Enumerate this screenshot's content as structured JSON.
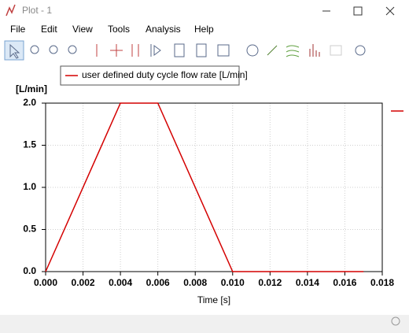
{
  "window": {
    "title": "Plot - 1"
  },
  "menu": [
    "File",
    "Edit",
    "View",
    "Tools",
    "Analysis",
    "Help"
  ],
  "chart_data": {
    "type": "line",
    "y_unit": "[L/min]",
    "x_label": "Time [s]",
    "x": [
      0,
      0.004,
      0.006,
      0.01,
      0.017
    ],
    "series": [
      {
        "name": "user defined duty cycle flow rate [L/min]",
        "color": "#d40000",
        "values": [
          0,
          2,
          2,
          0,
          0
        ]
      }
    ],
    "xlim": [
      0,
      0.018
    ],
    "xticks": [
      {
        "value": 0,
        "label": "0.000"
      },
      {
        "value": 0.002,
        "label": "0.002"
      },
      {
        "value": 0.004,
        "label": "0.004"
      },
      {
        "value": 0.006,
        "label": "0.006"
      },
      {
        "value": 0.008,
        "label": "0.008"
      },
      {
        "value": 0.01,
        "label": "0.010"
      },
      {
        "value": 0.012,
        "label": "0.012"
      },
      {
        "value": 0.014,
        "label": "0.014"
      },
      {
        "value": 0.016,
        "label": "0.016"
      },
      {
        "value": 0.018,
        "label": "0.018"
      }
    ],
    "ylim": [
      0,
      2
    ],
    "yticks": [
      {
        "value": 0,
        "label": "0.0"
      },
      {
        "value": 0.5,
        "label": "0.5"
      },
      {
        "value": 1,
        "label": "1.0"
      },
      {
        "value": 1.5,
        "label": "1.5"
      },
      {
        "value": 2,
        "label": "2.0"
      }
    ],
    "grid": true
  }
}
